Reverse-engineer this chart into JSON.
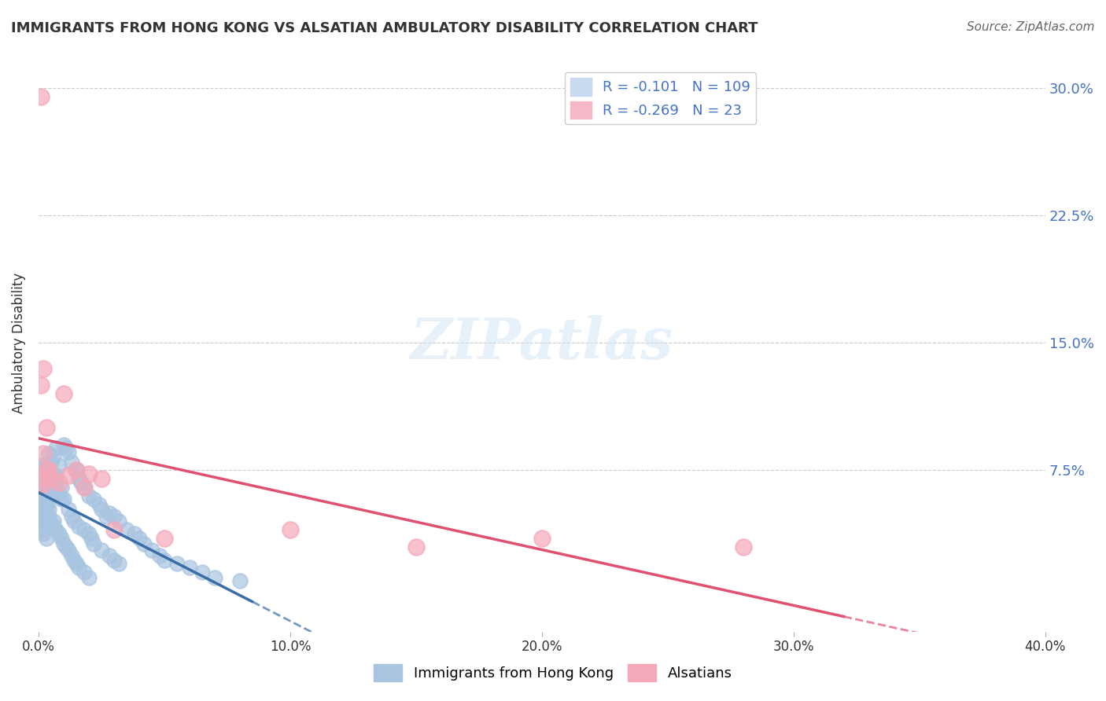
{
  "title": "IMMIGRANTS FROM HONG KONG VS ALSATIAN AMBULATORY DISABILITY CORRELATION CHART",
  "source": "Source: ZipAtlas.com",
  "xlabel_bottom": "",
  "ylabel": "Ambulatory Disability",
  "xlim": [
    0,
    0.4
  ],
  "ylim": [
    -0.02,
    0.32
  ],
  "yticks": [
    0.075,
    0.15,
    0.225,
    0.3
  ],
  "ytick_labels": [
    "7.5%",
    "15.0%",
    "22.5%",
    "30.0%"
  ],
  "xticks": [
    0.0,
    0.1,
    0.2,
    0.3,
    0.4
  ],
  "xtick_labels": [
    "0.0%",
    "10.0%",
    "20.0%",
    "30.0%",
    "40.0%"
  ],
  "blue_R": "-0.101",
  "blue_N": "109",
  "pink_R": "-0.269",
  "pink_N": "23",
  "blue_color": "#a8c4e0",
  "pink_color": "#f4a8b8",
  "blue_line_color": "#3a6ea8",
  "pink_line_color": "#e05070",
  "legend_labels": [
    "Immigrants from Hong Kong",
    "Alsatians"
  ],
  "watermark": "ZIPatlas",
  "blue_points_x": [
    0.001,
    0.002,
    0.001,
    0.003,
    0.002,
    0.001,
    0.004,
    0.002,
    0.003,
    0.001,
    0.002,
    0.003,
    0.001,
    0.002,
    0.001,
    0.003,
    0.002,
    0.004,
    0.003,
    0.005,
    0.001,
    0.002,
    0.003,
    0.004,
    0.002,
    0.001,
    0.003,
    0.002,
    0.001,
    0.004,
    0.005,
    0.003,
    0.002,
    0.001,
    0.006,
    0.004,
    0.003,
    0.007,
    0.005,
    0.002,
    0.004,
    0.006,
    0.003,
    0.008,
    0.005,
    0.002,
    0.007,
    0.009,
    0.006,
    0.003,
    0.01,
    0.007,
    0.004,
    0.011,
    0.008,
    0.005,
    0.012,
    0.009,
    0.006,
    0.013,
    0.015,
    0.01,
    0.007,
    0.016,
    0.012,
    0.008,
    0.017,
    0.013,
    0.009,
    0.018,
    0.02,
    0.014,
    0.01,
    0.022,
    0.016,
    0.011,
    0.024,
    0.018,
    0.012,
    0.025,
    0.027,
    0.02,
    0.013,
    0.028,
    0.021,
    0.014,
    0.03,
    0.022,
    0.015,
    0.032,
    0.035,
    0.025,
    0.016,
    0.038,
    0.028,
    0.018,
    0.04,
    0.03,
    0.02,
    0.042,
    0.045,
    0.032,
    0.048,
    0.05,
    0.055,
    0.06,
    0.065,
    0.07,
    0.08
  ],
  "blue_points_y": [
    0.065,
    0.06,
    0.07,
    0.058,
    0.072,
    0.055,
    0.068,
    0.062,
    0.074,
    0.05,
    0.063,
    0.057,
    0.075,
    0.053,
    0.048,
    0.066,
    0.071,
    0.059,
    0.077,
    0.064,
    0.045,
    0.069,
    0.054,
    0.073,
    0.061,
    0.047,
    0.067,
    0.056,
    0.078,
    0.052,
    0.08,
    0.049,
    0.076,
    0.043,
    0.083,
    0.07,
    0.055,
    0.088,
    0.074,
    0.04,
    0.085,
    0.065,
    0.05,
    0.078,
    0.06,
    0.038,
    0.072,
    0.058,
    0.045,
    0.035,
    0.09,
    0.069,
    0.048,
    0.088,
    0.062,
    0.044,
    0.086,
    0.065,
    0.042,
    0.08,
    0.075,
    0.058,
    0.04,
    0.07,
    0.052,
    0.038,
    0.068,
    0.048,
    0.035,
    0.065,
    0.06,
    0.045,
    0.032,
    0.058,
    0.042,
    0.03,
    0.055,
    0.04,
    0.028,
    0.052,
    0.048,
    0.038,
    0.025,
    0.05,
    0.035,
    0.022,
    0.048,
    0.032,
    0.02,
    0.045,
    0.04,
    0.028,
    0.018,
    0.038,
    0.025,
    0.015,
    0.035,
    0.022,
    0.012,
    0.032,
    0.028,
    0.02,
    0.025,
    0.022,
    0.02,
    0.018,
    0.015,
    0.012,
    0.01
  ],
  "pink_points_x": [
    0.001,
    0.002,
    0.001,
    0.003,
    0.002,
    0.001,
    0.003,
    0.002,
    0.004,
    0.005,
    0.01,
    0.015,
    0.008,
    0.012,
    0.02,
    0.025,
    0.018,
    0.03,
    0.1,
    0.2,
    0.15,
    0.05,
    0.28
  ],
  "pink_points_y": [
    0.295,
    0.135,
    0.125,
    0.1,
    0.085,
    0.07,
    0.075,
    0.067,
    0.075,
    0.07,
    0.12,
    0.075,
    0.068,
    0.072,
    0.073,
    0.07,
    0.065,
    0.04,
    0.04,
    0.035,
    0.03,
    0.035,
    0.03
  ]
}
